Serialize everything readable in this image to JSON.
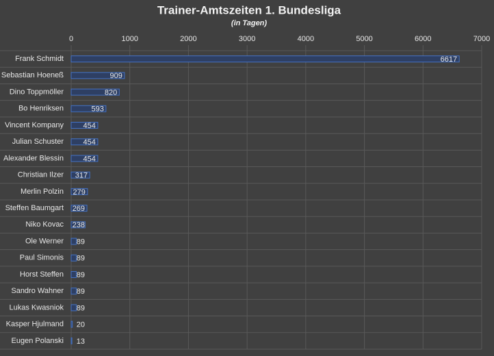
{
  "chart_data": {
    "type": "bar",
    "orientation": "horizontal",
    "title": "Trainer-Amtszeiten 1. Bundesliga",
    "subtitle": "(in Tagen)",
    "categories": [
      "Frank Schmidt",
      "Sebastian Hoeneß",
      "Dino Toppmöller",
      "Bo Henriksen",
      "Vincent Kompany",
      "Julian Schuster",
      "Alexander Blessin",
      "Christian Ilzer",
      "Merlin Polzin",
      "Steffen Baumgart",
      "Niko Kovac",
      "Ole Werner",
      "Paul Simonis",
      "Horst Steffen",
      "Sandro Wahner",
      "Lukas Kwasniok",
      "Kasper Hjulmand",
      "Eugen Polanski"
    ],
    "values": [
      6617,
      909,
      820,
      593,
      454,
      454,
      454,
      317,
      279,
      269,
      238,
      89,
      89,
      89,
      89,
      89,
      20,
      13
    ],
    "color": "#4472c4",
    "xlim": [
      0,
      7000
    ],
    "xticks": [
      0,
      1000,
      2000,
      3000,
      4000,
      5000,
      6000,
      7000
    ],
    "grid": true
  }
}
